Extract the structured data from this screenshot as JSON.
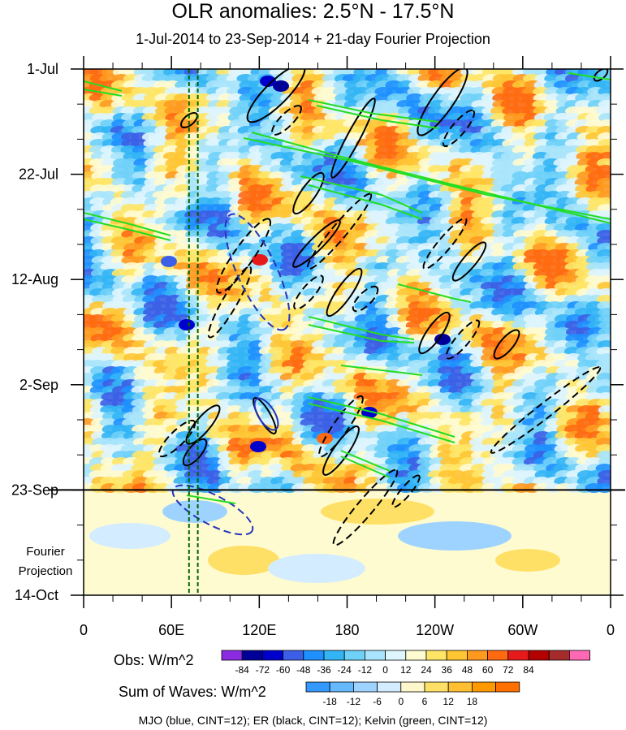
{
  "chart_data": {
    "type": "heatmap",
    "title": "OLR anomalies: 2.5°N - 17.5°N",
    "subtitle": "1-Jul-2014 to 23-Sep-2014 + 21-day Fourier Projection",
    "x_axis": {
      "ticks": [
        {
          "lon": 0,
          "label": "0"
        },
        {
          "lon": 60,
          "label": "60E"
        },
        {
          "lon": 120,
          "label": "120E"
        },
        {
          "lon": 180,
          "label": "180"
        },
        {
          "lon": 240,
          "label": "120W"
        },
        {
          "lon": 300,
          "label": "60W"
        },
        {
          "lon": 360,
          "label": "0"
        }
      ],
      "range": [
        0,
        360
      ]
    },
    "y_axis": {
      "ticks": [
        {
          "day": 0,
          "label": "1-Jul"
        },
        {
          "day": 21,
          "label": "22-Jul"
        },
        {
          "day": 42,
          "label": "12-Aug"
        },
        {
          "day": 63,
          "label": "2-Sep"
        },
        {
          "day": 84,
          "label": "23-Sep"
        },
        {
          "day": 105,
          "label": "14-Oct"
        }
      ],
      "range": [
        0,
        105
      ],
      "direction": "time increases downward"
    },
    "forecast_label": [
      "Fourier",
      "Projection"
    ],
    "colorbars": [
      {
        "label": "Obs: W/m^2",
        "colors": [
          "#8a2be2",
          "#000099",
          "#0000cd",
          "#3b5fe6",
          "#1e90ff",
          "#33b5f5",
          "#6fd0f8",
          "#a8e4fb",
          "#dff5fd",
          "#fffbd0",
          "#ffe566",
          "#ffc533",
          "#ff9a1f",
          "#ff6a10",
          "#e61a1a",
          "#b30000",
          "#a52a2a",
          "#ff69b4"
        ],
        "ticks": [
          "-84",
          "-72",
          "-60",
          "-48",
          "-36",
          "-24",
          "-12",
          "0",
          "12",
          "24",
          "36",
          "48",
          "60",
          "72",
          "84"
        ]
      },
      {
        "label": "Sum of Waves: W/m^2",
        "colors": [
          "#3399ff",
          "#66b8ff",
          "#9fd3ff",
          "#d3ecff",
          "#fff7cc",
          "#ffe066",
          "#ffbf33",
          "#ff9900",
          "#ff7000"
        ],
        "ticks": [
          "-18",
          "-12",
          "-6",
          "0",
          "6",
          "12",
          "18"
        ]
      }
    ],
    "footer": "MJO (blue, CINT=12); ER (black, CINT=12); Kelvin (green, CINT=12)",
    "series": [
      {
        "wave": "MJO",
        "line_color": "#2233bb"
      },
      {
        "wave": "ER",
        "line_color": "#000000"
      },
      {
        "wave": "Kelvin",
        "line_color": "#22dd22"
      }
    ],
    "reference_lines": {
      "lon": [
        72,
        78
      ],
      "color": "#006400"
    },
    "divider_day": 84,
    "field_colors": {
      "background_obs": "#dff5fd",
      "background_forecast": "#fffbd0"
    }
  }
}
